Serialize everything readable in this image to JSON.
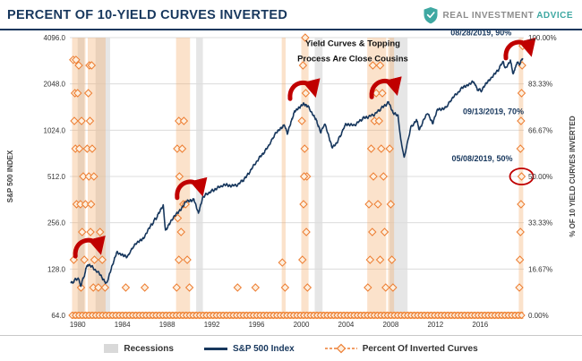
{
  "header": {
    "title": "PERCENT OF 10-YIELD CURVES INVERTED",
    "logo": {
      "brand_gray": "REAL INVESTMENT",
      "brand_teal": "ADVICE"
    }
  },
  "legend": {
    "recessions": "Recessions",
    "sp500": "S&P 500 Index",
    "inverted": "Percent Of Inverted Curves"
  },
  "colors": {
    "navy": "#17375d",
    "orange": "#ed7d31",
    "orange_fill": "#fdeedd",
    "orange_band": "#f6a55e",
    "bar": "rgba(243,166,94,0.32)",
    "recession": "#e6e6e6",
    "grid": "#dcdcdc",
    "red": "#c00000",
    "teal": "#3fa8a2",
    "tick_text": "#333333"
  },
  "chart_data": {
    "type": "line+scatter",
    "title": "PERCENT OF 10-YIELD CURVES INVERTED",
    "x_axis": {
      "ticks": [
        1980,
        1984,
        1988,
        1992,
        1996,
        2000,
        2004,
        2008,
        2012,
        2016
      ],
      "range": [
        1979.3,
        2019.9
      ]
    },
    "left_axis": {
      "label": "S&P 500 INDEX",
      "scale": "log2",
      "ticks": [
        4096,
        2048,
        1024,
        512,
        256,
        128,
        64
      ],
      "range": [
        64,
        4096
      ]
    },
    "right_axis": {
      "label": "% OF 10 YIELD CURVES INVERTED",
      "ticks": [
        100,
        83.33,
        66.67,
        50,
        33.33,
        16.67,
        0
      ],
      "range": [
        0,
        100
      ]
    },
    "recessions": [
      [
        1980.0,
        1980.6
      ],
      [
        1981.6,
        1982.9
      ],
      [
        1990.6,
        1991.2
      ],
      [
        2001.2,
        2001.9
      ],
      [
        2007.9,
        2009.5
      ]
    ],
    "inversion_bars": [
      [
        1979.5,
        1980.7
      ],
      [
        1980.9,
        1982.5
      ],
      [
        1988.8,
        1990.05
      ],
      [
        1998.25,
        1998.6
      ],
      [
        2000.0,
        2000.65
      ],
      [
        2005.9,
        2007.6
      ],
      [
        2007.75,
        2008.3
      ],
      [
        2019.45,
        2019.85
      ]
    ],
    "baseline_band": {
      "from": 1979.5,
      "to": 2019.85,
      "pct": 0,
      "diamond_step": 0.3
    },
    "sp500_series": {
      "name": "S&P 500 Index",
      "points": [
        [
          1979.4,
          103
        ],
        [
          1980.0,
          112
        ],
        [
          1980.3,
          100
        ],
        [
          1980.9,
          138
        ],
        [
          1981.4,
          130
        ],
        [
          1981.9,
          120
        ],
        [
          1982.6,
          103
        ],
        [
          1983.5,
          166
        ],
        [
          1984.4,
          152
        ],
        [
          1985.0,
          180
        ],
        [
          1985.9,
          205
        ],
        [
          1986.6,
          248
        ],
        [
          1987.2,
          288
        ],
        [
          1987.65,
          332
        ],
        [
          1987.85,
          226
        ],
        [
          1988.3,
          262
        ],
        [
          1989.0,
          300
        ],
        [
          1989.7,
          350
        ],
        [
          1990.4,
          365
        ],
        [
          1990.8,
          298
        ],
        [
          1991.2,
          378
        ],
        [
          1992.0,
          412
        ],
        [
          1993.0,
          450
        ],
        [
          1994.2,
          446
        ],
        [
          1995.0,
          500
        ],
        [
          1996.0,
          640
        ],
        [
          1997.0,
          790
        ],
        [
          1997.6,
          950
        ],
        [
          1998.5,
          1120
        ],
        [
          1998.75,
          965
        ],
        [
          1999.4,
          1350
        ],
        [
          1999.8,
          1420
        ],
        [
          2000.2,
          1512
        ],
        [
          2000.6,
          1460
        ],
        [
          2000.9,
          1350
        ],
        [
          2001.3,
          1220
        ],
        [
          2001.75,
          990
        ],
        [
          2002.1,
          1130
        ],
        [
          2002.75,
          798
        ],
        [
          2003.2,
          850
        ],
        [
          2004.0,
          1130
        ],
        [
          2004.7,
          1095
        ],
        [
          2005.5,
          1220
        ],
        [
          2006.5,
          1290
        ],
        [
          2007.3,
          1450
        ],
        [
          2007.8,
          1555
        ],
        [
          2008.2,
          1330
        ],
        [
          2008.65,
          1260
        ],
        [
          2008.9,
          890
        ],
        [
          2009.2,
          678
        ],
        [
          2009.8,
          1070
        ],
        [
          2010.3,
          1190
        ],
        [
          2010.55,
          1035
        ],
        [
          2011.3,
          1340
        ],
        [
          2011.75,
          1125
        ],
        [
          2012.2,
          1400
        ],
        [
          2012.9,
          1425
        ],
        [
          2013.5,
          1650
        ],
        [
          2014.5,
          1960
        ],
        [
          2015.4,
          2115
        ],
        [
          2015.75,
          1890
        ],
        [
          2016.1,
          1850
        ],
        [
          2016.8,
          2180
        ],
        [
          2017.5,
          2450
        ],
        [
          2018.05,
          2870
        ],
        [
          2018.25,
          2585
        ],
        [
          2018.7,
          2920
        ],
        [
          2018.95,
          2350
        ],
        [
          2019.3,
          2850
        ],
        [
          2019.55,
          2750
        ],
        [
          2019.8,
          3007
        ]
      ]
    },
    "inverted_diamonds": [
      [
        1979.6,
        92
      ],
      [
        1979.85,
        92
      ],
      [
        1980.1,
        90
      ],
      [
        1981.05,
        90
      ],
      [
        1981.25,
        90
      ],
      [
        1979.75,
        80
      ],
      [
        1980.0,
        80
      ],
      [
        1980.95,
        80
      ],
      [
        1979.7,
        70
      ],
      [
        1980.35,
        70
      ],
      [
        1981.1,
        70
      ],
      [
        1979.8,
        60
      ],
      [
        1980.15,
        60
      ],
      [
        1980.85,
        60
      ],
      [
        1981.3,
        60
      ],
      [
        1980.5,
        50
      ],
      [
        1981.0,
        50
      ],
      [
        1981.45,
        50
      ],
      [
        1979.9,
        40
      ],
      [
        1980.25,
        40
      ],
      [
        1980.7,
        40
      ],
      [
        1981.2,
        40
      ],
      [
        1980.4,
        30
      ],
      [
        1981.15,
        30
      ],
      [
        1982.0,
        30
      ],
      [
        1979.65,
        20
      ],
      [
        1980.6,
        20
      ],
      [
        1981.5,
        20
      ],
      [
        1982.2,
        20
      ],
      [
        1980.3,
        10
      ],
      [
        1981.4,
        10
      ],
      [
        1981.85,
        10
      ],
      [
        1982.45,
        10
      ],
      [
        1988.85,
        10
      ],
      [
        1989.05,
        20
      ],
      [
        1989.25,
        30
      ],
      [
        1988.95,
        35
      ],
      [
        1989.45,
        40
      ],
      [
        1989.1,
        50
      ],
      [
        1988.9,
        60
      ],
      [
        1989.35,
        60
      ],
      [
        1989.05,
        70
      ],
      [
        1989.5,
        70
      ],
      [
        1989.65,
        40
      ],
      [
        1989.8,
        20
      ],
      [
        1990.0,
        10
      ],
      [
        1984.3,
        10
      ],
      [
        1986.0,
        10
      ],
      [
        1994.3,
        10
      ],
      [
        1995.9,
        10
      ],
      [
        1998.3,
        19
      ],
      [
        1998.55,
        10
      ],
      [
        2000.35,
        100
      ],
      [
        2000.15,
        90
      ],
      [
        2000.4,
        80
      ],
      [
        2000.05,
        70
      ],
      [
        2000.3,
        60
      ],
      [
        2000.5,
        50
      ],
      [
        2000.25,
        50
      ],
      [
        2000.2,
        40
      ],
      [
        2000.45,
        30
      ],
      [
        2000.1,
        20
      ],
      [
        2000.55,
        10
      ],
      [
        2005.95,
        10
      ],
      [
        2006.15,
        20
      ],
      [
        2006.35,
        30
      ],
      [
        2006.05,
        40
      ],
      [
        2006.45,
        50
      ],
      [
        2006.25,
        60
      ],
      [
        2006.55,
        70
      ],
      [
        2006.7,
        80
      ],
      [
        2006.4,
        90
      ],
      [
        2007.05,
        90
      ],
      [
        2007.25,
        80
      ],
      [
        2006.95,
        70
      ],
      [
        2007.15,
        60
      ],
      [
        2007.35,
        50
      ],
      [
        2006.85,
        40
      ],
      [
        2007.45,
        30
      ],
      [
        2007.05,
        20
      ],
      [
        2007.55,
        10
      ],
      [
        2007.9,
        60
      ],
      [
        2008.0,
        40
      ],
      [
        2008.1,
        20
      ],
      [
        2008.2,
        10
      ],
      [
        2019.5,
        10
      ],
      [
        2019.55,
        20
      ],
      [
        2019.6,
        30
      ],
      [
        2019.65,
        40
      ],
      [
        2019.7,
        50
      ],
      [
        2019.6,
        60
      ],
      [
        2019.65,
        70
      ],
      [
        2019.7,
        80
      ],
      [
        2019.75,
        90
      ],
      [
        2019.8,
        97
      ]
    ],
    "topping_arrows": [
      {
        "x": 1981.0,
        "v": 175
      },
      {
        "x": 1990.1,
        "v": 420
      },
      {
        "x": 2000.2,
        "v": 1850
      },
      {
        "x": 2007.5,
        "v": 1900
      },
      {
        "x": 2019.5,
        "v": 3400
      }
    ],
    "annotations": {
      "cousins": {
        "lines": [
          "Yield Curves & Topping",
          "Process Are Close Cousins"
        ],
        "x": 2004.6,
        "pct": [
          97,
          91.5
        ]
      },
      "callouts": [
        {
          "text": "08/28/2019, 90%",
          "x": 2018.8,
          "pct": 100.8,
          "anchor": "end"
        },
        {
          "text": "09/13/2019, 70%",
          "x": 2019.9,
          "pct": 72.5,
          "anchor": "end"
        },
        {
          "text": "05/08/2019, 50%",
          "x": 2018.9,
          "pct": 55.5,
          "anchor": "end"
        }
      ],
      "circle": {
        "x": 2019.7,
        "pct": 50
      }
    }
  }
}
